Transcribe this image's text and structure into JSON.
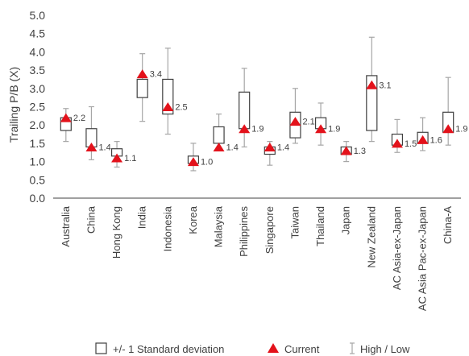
{
  "chart_data": {
    "type": "box",
    "title": "",
    "ylabel": "Trailing P/B (X)",
    "xlabel": "",
    "ylim": [
      0,
      5
    ],
    "ytick_step": 0.5,
    "yticks": [
      "0.0",
      "0.5",
      "1.0",
      "1.5",
      "2.0",
      "2.5",
      "3.0",
      "3.5",
      "4.0",
      "4.5",
      "5.0"
    ],
    "grid": false,
    "legend_position": "bottom",
    "legend": {
      "box": "+/- 1 Standard deviation",
      "current": "Current",
      "range": "High / Low"
    },
    "colors": {
      "box": "#404040",
      "current": "#e3121b",
      "whisker": "#a6a6a6",
      "axis": "#404040"
    },
    "categories": [
      "Australia",
      "China",
      "Hong Kong",
      "India",
      "Indonesia",
      "Korea",
      "Malaysia",
      "Philippines",
      "Singapore",
      "Taiwan",
      "Thailand",
      "Japan",
      "New Zealand",
      "AC Asia-ex-Japan",
      "AC Asia Pac-ex-Japan",
      "China-A"
    ],
    "high": [
      2.45,
      2.5,
      1.55,
      3.95,
      4.1,
      1.5,
      2.3,
      3.55,
      1.55,
      3.0,
      2.6,
      1.55,
      4.4,
      2.15,
      2.2,
      3.3
    ],
    "low": [
      1.55,
      1.05,
      0.85,
      2.1,
      1.75,
      0.75,
      1.35,
      1.4,
      0.9,
      1.5,
      1.45,
      1.0,
      1.55,
      1.25,
      1.3,
      1.45
    ],
    "box_top": [
      2.2,
      1.9,
      1.35,
      3.25,
      3.25,
      1.15,
      1.95,
      2.9,
      1.4,
      2.35,
      2.2,
      1.4,
      3.35,
      1.75,
      1.8,
      2.35
    ],
    "box_bottom": [
      1.85,
      1.4,
      1.15,
      2.75,
      2.3,
      0.95,
      1.5,
      1.9,
      1.2,
      1.65,
      1.9,
      1.2,
      1.85,
      1.45,
      1.5,
      1.8
    ],
    "current": [
      2.2,
      1.4,
      1.1,
      3.4,
      2.5,
      1.0,
      1.4,
      1.9,
      1.4,
      2.1,
      1.9,
      1.3,
      3.1,
      1.5,
      1.6,
      1.9
    ],
    "current_labels": [
      "2.2",
      "1.4",
      "1.1",
      "3.4",
      "2.5",
      "1.0",
      "1.4",
      "1.9",
      "1.4",
      "2.1",
      "1.9",
      "1.3",
      "3.1",
      "1.5",
      "1.6",
      "1.9"
    ]
  }
}
